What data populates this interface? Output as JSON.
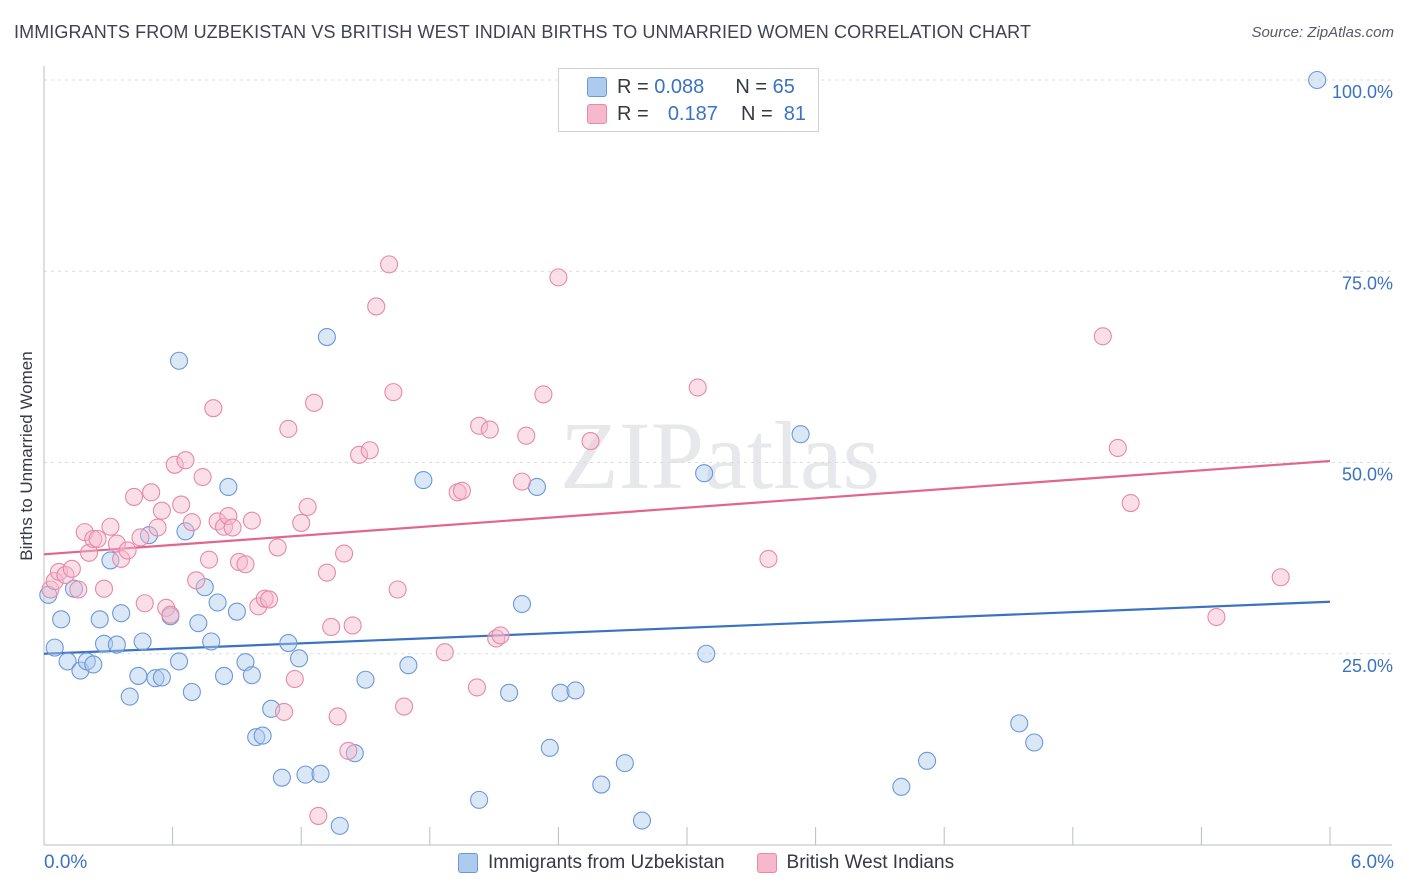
{
  "title": "IMMIGRANTS FROM UZBEKISTAN VS BRITISH WEST INDIAN BIRTHS TO UNMARRIED WOMEN CORRELATION CHART",
  "source": "Source: ZipAtlas.com",
  "watermark": "ZIPatlas",
  "legend": {
    "rows": [
      {
        "r_label": "R =",
        "r_value": "0.088",
        "n_label": "N =",
        "n_value": "65"
      },
      {
        "r_label": "R =",
        "r_value": "0.187",
        "n_label": "N =",
        "n_value": "81"
      }
    ]
  },
  "x_axis": {
    "min_label": "0.0%",
    "max_label": "6.0%"
  },
  "chart_data": {
    "type": "scatter",
    "title": "IMMIGRANTS FROM UZBEKISTAN VS BRITISH WEST INDIAN BIRTHS TO UNMARRIED WOMEN CORRELATION CHART",
    "xlabel": "",
    "ylabel": "Births to Unmarried Women",
    "xlim": [
      0,
      6
    ],
    "ylim": [
      0,
      100
    ],
    "y_ticks": [
      25,
      50,
      75,
      100
    ],
    "y_tick_labels": [
      "25.0%",
      "50.0%",
      "75.0%",
      "100.0%"
    ],
    "grid": true,
    "colors": {
      "blue": "#3a72c4",
      "blue_fill": "#aecaee",
      "pink": "#e0668f",
      "pink_fill": "#f6b9cc"
    },
    "series": [
      {
        "name": "Immigrants from Uzbekistan",
        "color": "#3a72c4",
        "trend": {
          "x": [
            0,
            6
          ],
          "y": [
            25.0,
            31.8
          ]
        },
        "points": [
          [
            0.02,
            32.7
          ],
          [
            0.05,
            25.8
          ],
          [
            0.08,
            29.5
          ],
          [
            0.11,
            24.0
          ],
          [
            0.14,
            33.5
          ],
          [
            0.17,
            22.8
          ],
          [
            0.2,
            24.0
          ],
          [
            0.23,
            23.6
          ],
          [
            0.26,
            29.5
          ],
          [
            0.28,
            26.3
          ],
          [
            0.31,
            37.2
          ],
          [
            0.34,
            26.2
          ],
          [
            0.36,
            30.3
          ],
          [
            0.4,
            19.4
          ],
          [
            0.44,
            22.1
          ],
          [
            0.46,
            26.6
          ],
          [
            0.49,
            40.5
          ],
          [
            0.52,
            21.8
          ],
          [
            0.55,
            21.9
          ],
          [
            0.59,
            29.9
          ],
          [
            0.63,
            63.3
          ],
          [
            0.63,
            24.0
          ],
          [
            0.66,
            41.0
          ],
          [
            0.69,
            20.0
          ],
          [
            0.72,
            29.0
          ],
          [
            0.75,
            33.7
          ],
          [
            0.78,
            26.6
          ],
          [
            0.81,
            31.7
          ],
          [
            0.84,
            22.1
          ],
          [
            0.86,
            46.8
          ],
          [
            0.9,
            30.5
          ],
          [
            0.94,
            23.9
          ],
          [
            0.97,
            22.2
          ],
          [
            0.99,
            14.1
          ],
          [
            1.02,
            14.3
          ],
          [
            1.06,
            17.8
          ],
          [
            1.11,
            8.8
          ],
          [
            1.14,
            26.4
          ],
          [
            1.19,
            24.4
          ],
          [
            1.22,
            9.2
          ],
          [
            1.29,
            9.3
          ],
          [
            1.32,
            66.4
          ],
          [
            1.38,
            2.5
          ],
          [
            1.45,
            12.0
          ],
          [
            1.5,
            21.6
          ],
          [
            1.7,
            23.5
          ],
          [
            1.77,
            47.7
          ],
          [
            2.03,
            5.9
          ],
          [
            2.17,
            19.9
          ],
          [
            2.23,
            31.5
          ],
          [
            2.3,
            46.8
          ],
          [
            2.36,
            12.7
          ],
          [
            2.41,
            19.9
          ],
          [
            2.48,
            20.2
          ],
          [
            2.6,
            7.9
          ],
          [
            2.71,
            10.7
          ],
          [
            2.79,
            3.2
          ],
          [
            3.08,
            48.6
          ],
          [
            3.09,
            25.0
          ],
          [
            3.53,
            53.7
          ],
          [
            4.0,
            7.6
          ],
          [
            4.12,
            11.0
          ],
          [
            4.55,
            15.9
          ],
          [
            4.62,
            13.4
          ],
          [
            5.94,
            100.0
          ]
        ]
      },
      {
        "name": "British West Indians",
        "color": "#e0668f",
        "trend": {
          "x": [
            0,
            6
          ],
          "y": [
            38.0,
            50.2
          ]
        },
        "points": [
          [
            0.03,
            33.4
          ],
          [
            0.05,
            34.5
          ],
          [
            0.07,
            35.7
          ],
          [
            0.1,
            35.3
          ],
          [
            0.13,
            36.1
          ],
          [
            0.16,
            33.4
          ],
          [
            0.19,
            40.9
          ],
          [
            0.21,
            38.2
          ],
          [
            0.23,
            40.0
          ],
          [
            0.25,
            40.0
          ],
          [
            0.28,
            33.5
          ],
          [
            0.31,
            41.6
          ],
          [
            0.34,
            39.4
          ],
          [
            0.36,
            37.4
          ],
          [
            0.39,
            38.5
          ],
          [
            0.42,
            45.5
          ],
          [
            0.45,
            40.2
          ],
          [
            0.47,
            31.6
          ],
          [
            0.5,
            46.1
          ],
          [
            0.53,
            41.5
          ],
          [
            0.55,
            43.7
          ],
          [
            0.57,
            31.0
          ],
          [
            0.59,
            30.1
          ],
          [
            0.61,
            49.7
          ],
          [
            0.64,
            44.5
          ],
          [
            0.66,
            50.3
          ],
          [
            0.69,
            42.2
          ],
          [
            0.71,
            34.6
          ],
          [
            0.74,
            48.1
          ],
          [
            0.77,
            37.3
          ],
          [
            0.79,
            57.1
          ],
          [
            0.81,
            42.3
          ],
          [
            0.84,
            41.6
          ],
          [
            0.86,
            43.0
          ],
          [
            0.88,
            41.5
          ],
          [
            0.91,
            37.0
          ],
          [
            0.94,
            36.7
          ],
          [
            0.97,
            42.4
          ],
          [
            1.0,
            31.2
          ],
          [
            1.03,
            32.2
          ],
          [
            1.05,
            32.1
          ],
          [
            1.09,
            38.9
          ],
          [
            1.12,
            17.4
          ],
          [
            1.14,
            54.4
          ],
          [
            1.17,
            21.7
          ],
          [
            1.2,
            42.1
          ],
          [
            1.23,
            44.2
          ],
          [
            1.26,
            57.8
          ],
          [
            1.28,
            3.8
          ],
          [
            1.32,
            35.6
          ],
          [
            1.34,
            28.5
          ],
          [
            1.37,
            16.8
          ],
          [
            1.4,
            38.1
          ],
          [
            1.42,
            12.3
          ],
          [
            1.44,
            28.7
          ],
          [
            1.47,
            51.0
          ],
          [
            1.52,
            51.6
          ],
          [
            1.55,
            70.4
          ],
          [
            1.61,
            75.9
          ],
          [
            1.63,
            59.2
          ],
          [
            1.65,
            33.4
          ],
          [
            1.68,
            18.1
          ],
          [
            1.87,
            25.2
          ],
          [
            1.93,
            46.1
          ],
          [
            1.95,
            46.3
          ],
          [
            2.02,
            20.6
          ],
          [
            2.03,
            54.8
          ],
          [
            2.08,
            54.3
          ],
          [
            2.11,
            27.0
          ],
          [
            2.13,
            27.4
          ],
          [
            2.23,
            47.5
          ],
          [
            2.25,
            53.5
          ],
          [
            2.33,
            58.9
          ],
          [
            2.4,
            74.2
          ],
          [
            2.55,
            52.8
          ],
          [
            3.05,
            59.8
          ],
          [
            3.38,
            37.4
          ],
          [
            4.94,
            66.5
          ],
          [
            5.01,
            51.9
          ],
          [
            5.07,
            44.7
          ],
          [
            5.47,
            29.8
          ],
          [
            5.77,
            35.0
          ]
        ]
      }
    ]
  }
}
